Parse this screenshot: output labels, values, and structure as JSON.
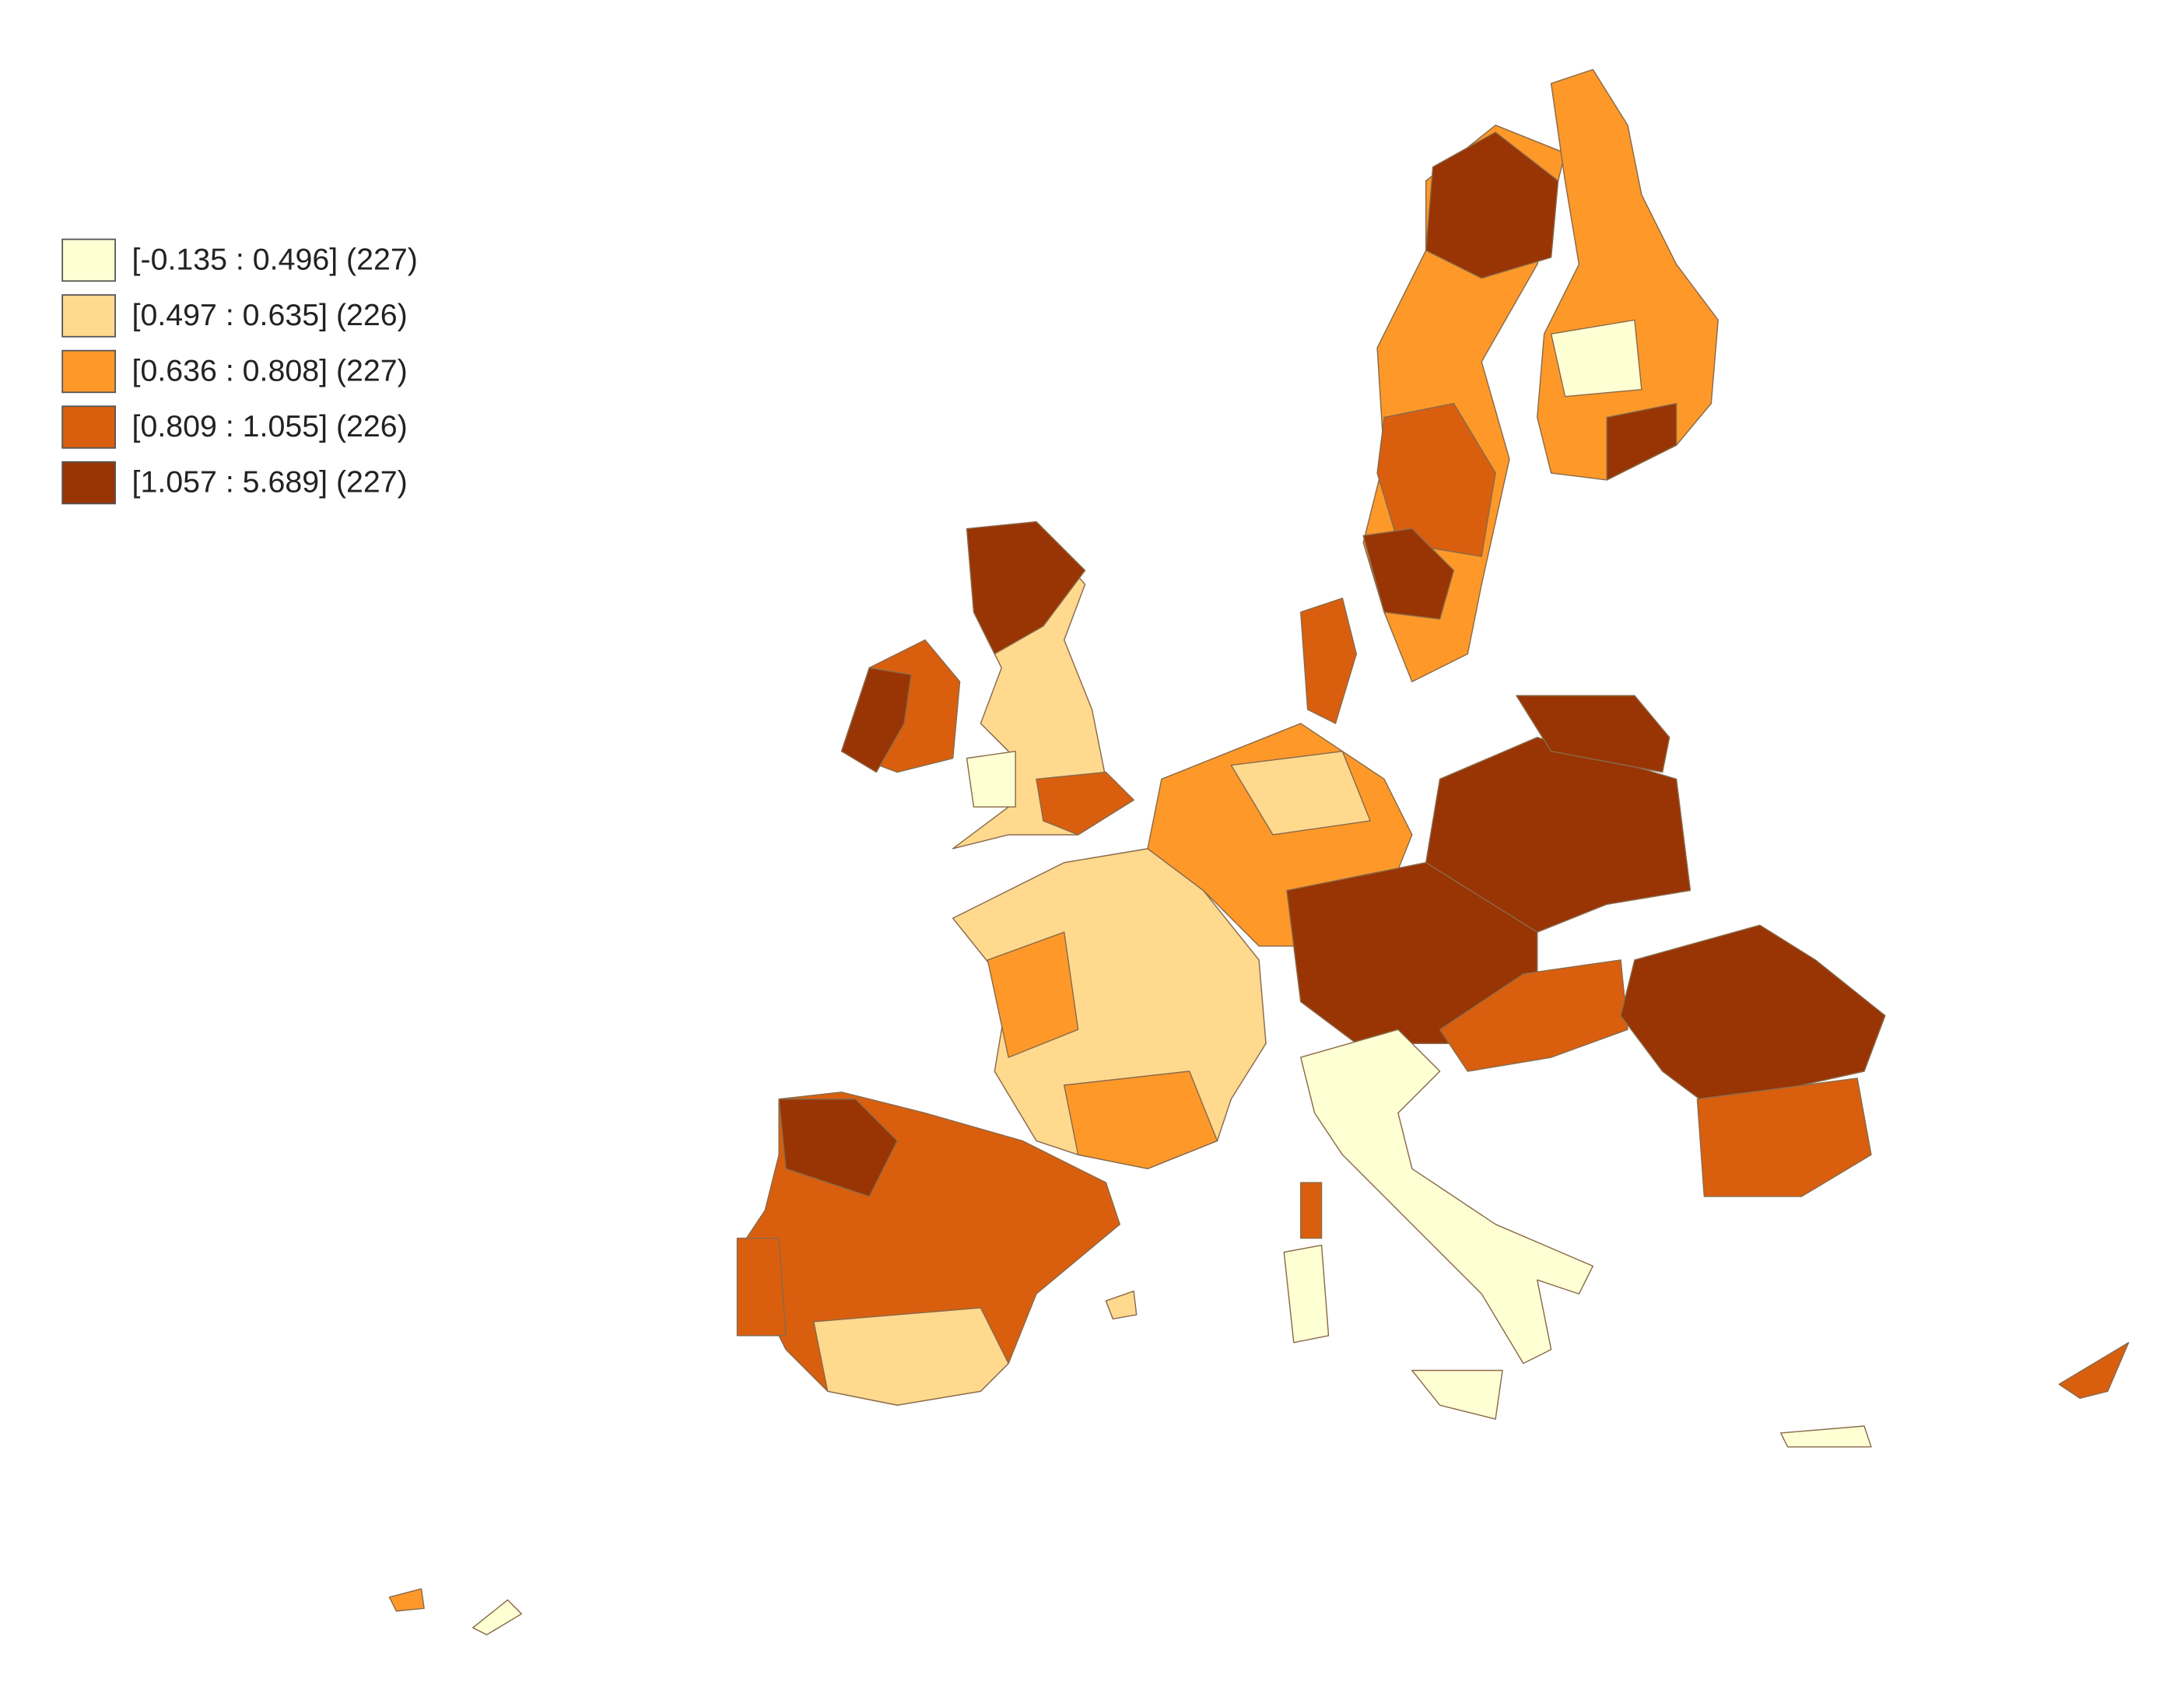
{
  "legend": {
    "items": [
      {
        "label": "[-0.135 : 0.496] (227)",
        "color": "#ffffd4"
      },
      {
        "label": "[0.497 : 0.635] (226)",
        "color": "#fed98e"
      },
      {
        "label": "[0.636 : 0.808] (227)",
        "color": "#fe9929"
      },
      {
        "label": "[0.809 : 1.055] (226)",
        "color": "#d95f0e"
      },
      {
        "label": "[1.057 : 5.689] (227)",
        "color": "#993404"
      }
    ]
  }
}
